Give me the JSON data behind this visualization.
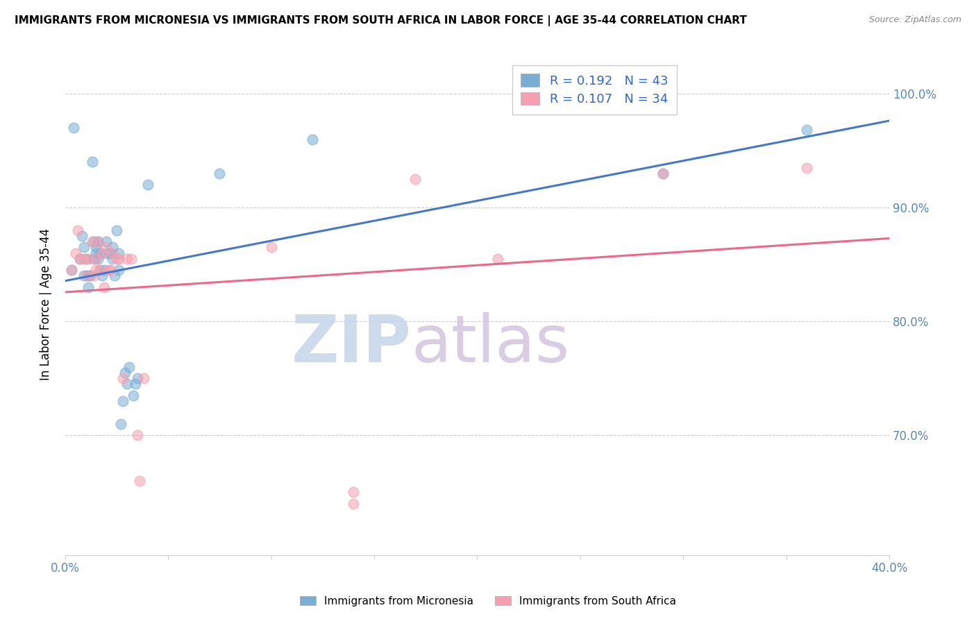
{
  "title": "IMMIGRANTS FROM MICRONESIA VS IMMIGRANTS FROM SOUTH AFRICA IN LABOR FORCE | AGE 35-44 CORRELATION CHART",
  "source": "Source: ZipAtlas.com",
  "ylabel": "In Labor Force | Age 35-44",
  "xlim": [
    0.0,
    0.4
  ],
  "ylim": [
    0.595,
    1.035
  ],
  "xticks": [
    0.0,
    0.05,
    0.1,
    0.15,
    0.2,
    0.25,
    0.3,
    0.35,
    0.4
  ],
  "xticklabels": [
    "0.0%",
    "",
    "",
    "",
    "",
    "",
    "",
    "",
    "40.0%"
  ],
  "yticks": [
    0.7,
    0.8,
    0.9,
    1.0
  ],
  "yticklabels": [
    "70.0%",
    "80.0%",
    "90.0%",
    "100.0%"
  ],
  "blue_color": "#7AADD4",
  "pink_color": "#F4A0B0",
  "blue_line_color": "#4477CC",
  "pink_line_color": "#EE6688",
  "R_blue": 0.192,
  "N_blue": 43,
  "R_pink": 0.107,
  "N_pink": 34,
  "watermark_zip": "ZIP",
  "watermark_atlas": "atlas",
  "legend_label_blue": "R = 0.192   N = 43",
  "legend_label_pink": "R = 0.107   N = 34",
  "bottom_label_blue": "Immigrants from Micronesia",
  "bottom_label_pink": "Immigrants from South Africa",
  "blue_scatter_x": [
    0.003,
    0.004,
    0.007,
    0.008,
    0.009,
    0.009,
    0.01,
    0.011,
    0.011,
    0.012,
    0.013,
    0.014,
    0.014,
    0.015,
    0.015,
    0.016,
    0.016,
    0.017,
    0.017,
    0.018,
    0.019,
    0.02,
    0.02,
    0.022,
    0.023,
    0.023,
    0.024,
    0.025,
    0.026,
    0.026,
    0.027,
    0.028,
    0.029,
    0.03,
    0.031,
    0.033,
    0.034,
    0.035,
    0.04,
    0.075,
    0.12,
    0.29,
    0.36
  ],
  "blue_scatter_y": [
    0.845,
    0.97,
    0.855,
    0.875,
    0.84,
    0.865,
    0.855,
    0.83,
    0.84,
    0.84,
    0.94,
    0.855,
    0.87,
    0.86,
    0.865,
    0.855,
    0.87,
    0.845,
    0.86,
    0.84,
    0.845,
    0.86,
    0.87,
    0.86,
    0.855,
    0.865,
    0.84,
    0.88,
    0.845,
    0.86,
    0.71,
    0.73,
    0.755,
    0.745,
    0.76,
    0.735,
    0.745,
    0.75,
    0.92,
    0.93,
    0.96,
    0.93,
    0.968
  ],
  "pink_scatter_x": [
    0.003,
    0.005,
    0.006,
    0.007,
    0.009,
    0.01,
    0.011,
    0.013,
    0.014,
    0.015,
    0.015,
    0.016,
    0.017,
    0.018,
    0.019,
    0.02,
    0.021,
    0.022,
    0.023,
    0.025,
    0.026,
    0.028,
    0.03,
    0.032,
    0.035,
    0.036,
    0.038,
    0.1,
    0.14,
    0.17,
    0.21,
    0.14,
    0.29,
    0.36
  ],
  "pink_scatter_y": [
    0.845,
    0.86,
    0.88,
    0.855,
    0.855,
    0.84,
    0.855,
    0.87,
    0.84,
    0.845,
    0.855,
    0.87,
    0.845,
    0.86,
    0.83,
    0.865,
    0.845,
    0.845,
    0.86,
    0.855,
    0.855,
    0.75,
    0.855,
    0.855,
    0.7,
    0.66,
    0.75,
    0.865,
    0.64,
    0.925,
    0.855,
    0.65,
    0.93,
    0.935
  ]
}
